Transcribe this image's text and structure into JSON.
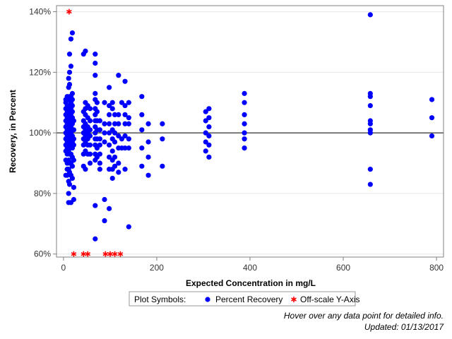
{
  "chart_data": {
    "type": "scatter",
    "xlabel": "Expected Concentration in mg/L",
    "ylabel": "Recovery, in Percent",
    "xlim": [
      -15,
      815
    ],
    "ylim": [
      59,
      142
    ],
    "x_ticks": [
      0,
      200,
      400,
      600,
      800
    ],
    "y_ticks": [
      60,
      80,
      100,
      120,
      140
    ],
    "y_tick_labels": [
      "60%",
      "80%",
      "100%",
      "120%",
      "140%"
    ],
    "reference_line_y": 100,
    "grid": "horizontal",
    "legend": {
      "title": "Plot Symbols:",
      "placement": "bottom-center",
      "items": [
        {
          "label": "Percent Recovery",
          "symbol": "filled-circle",
          "color": "#0000ff"
        },
        {
          "label": "Off-scale Y-Axis",
          "symbol": "asterisk",
          "color": "#ff0000"
        }
      ]
    },
    "series": [
      {
        "name": "Percent Recovery",
        "color": "#0000ff",
        "points": [
          [
            5,
            111
          ],
          [
            5,
            110
          ],
          [
            5,
            108
          ],
          [
            5,
            106
          ],
          [
            5,
            104
          ],
          [
            5,
            102
          ],
          [
            5,
            100
          ],
          [
            5,
            98
          ],
          [
            5,
            96
          ],
          [
            5,
            94
          ],
          [
            5,
            91
          ],
          [
            5,
            86
          ],
          [
            8,
            112
          ],
          [
            8,
            109
          ],
          [
            8,
            107
          ],
          [
            8,
            105
          ],
          [
            8,
            103
          ],
          [
            8,
            101
          ],
          [
            8,
            99
          ],
          [
            8,
            97
          ],
          [
            8,
            95
          ],
          [
            8,
            93
          ],
          [
            8,
            90
          ],
          [
            8,
            88
          ],
          [
            8,
            86
          ],
          [
            11,
            118
          ],
          [
            11,
            115
          ],
          [
            11,
            111
          ],
          [
            11,
            108
          ],
          [
            11,
            106
          ],
          [
            11,
            104
          ],
          [
            11,
            102
          ],
          [
            11,
            100
          ],
          [
            11,
            98
          ],
          [
            11,
            96
          ],
          [
            11,
            94
          ],
          [
            11,
            91
          ],
          [
            11,
            88
          ],
          [
            11,
            84
          ],
          [
            11,
            80
          ],
          [
            11,
            77
          ],
          [
            13,
            126
          ],
          [
            13,
            120
          ],
          [
            13,
            116
          ],
          [
            13,
            112
          ],
          [
            13,
            109
          ],
          [
            13,
            107
          ],
          [
            13,
            105
          ],
          [
            13,
            103
          ],
          [
            13,
            101
          ],
          [
            13,
            99
          ],
          [
            13,
            97
          ],
          [
            13,
            95
          ],
          [
            13,
            93
          ],
          [
            13,
            90
          ],
          [
            13,
            87
          ],
          [
            13,
            83
          ],
          [
            16,
            131
          ],
          [
            16,
            122
          ],
          [
            16,
            112
          ],
          [
            16,
            110
          ],
          [
            16,
            108
          ],
          [
            16,
            106
          ],
          [
            16,
            104
          ],
          [
            16,
            102
          ],
          [
            16,
            100
          ],
          [
            16,
            98
          ],
          [
            16,
            96
          ],
          [
            16,
            93
          ],
          [
            16,
            90
          ],
          [
            16,
            86
          ],
          [
            16,
            77
          ],
          [
            19,
            133
          ],
          [
            19,
            113
          ],
          [
            19,
            111
          ],
          [
            19,
            109
          ],
          [
            19,
            107
          ],
          [
            19,
            105
          ],
          [
            19,
            103
          ],
          [
            19,
            101
          ],
          [
            19,
            99
          ],
          [
            19,
            97
          ],
          [
            19,
            95
          ],
          [
            19,
            92
          ],
          [
            19,
            89
          ],
          [
            19,
            85
          ],
          [
            22,
            104
          ],
          [
            22,
            101
          ],
          [
            22,
            98
          ],
          [
            22,
            96
          ],
          [
            22,
            91
          ],
          [
            22,
            82
          ],
          [
            22,
            78
          ],
          [
            43,
            126
          ],
          [
            43,
            107
          ],
          [
            43,
            104
          ],
          [
            43,
            102
          ],
          [
            43,
            100
          ],
          [
            43,
            98
          ],
          [
            43,
            96
          ],
          [
            43,
            93
          ],
          [
            43,
            89
          ],
          [
            47,
            127
          ],
          [
            47,
            110
          ],
          [
            47,
            108
          ],
          [
            47,
            106
          ],
          [
            47,
            103
          ],
          [
            47,
            101
          ],
          [
            47,
            99
          ],
          [
            47,
            97
          ],
          [
            47,
            94
          ],
          [
            47,
            88
          ],
          [
            52,
            109
          ],
          [
            52,
            105
          ],
          [
            52,
            102
          ],
          [
            52,
            100
          ],
          [
            52,
            98
          ],
          [
            52,
            96
          ],
          [
            52,
            93
          ],
          [
            57,
            108
          ],
          [
            57,
            104
          ],
          [
            57,
            101
          ],
          [
            57,
            99
          ],
          [
            57,
            96
          ],
          [
            57,
            93
          ],
          [
            57,
            90
          ],
          [
            68,
            126
          ],
          [
            68,
            123
          ],
          [
            68,
            119
          ],
          [
            68,
            113
          ],
          [
            68,
            111
          ],
          [
            68,
            108
          ],
          [
            68,
            106
          ],
          [
            68,
            104
          ],
          [
            68,
            102
          ],
          [
            68,
            100
          ],
          [
            68,
            98
          ],
          [
            68,
            96
          ],
          [
            68,
            93
          ],
          [
            68,
            91
          ],
          [
            68,
            76
          ],
          [
            68,
            65
          ],
          [
            72,
            110
          ],
          [
            72,
            107
          ],
          [
            72,
            104
          ],
          [
            72,
            101
          ],
          [
            72,
            98
          ],
          [
            72,
            95
          ],
          [
            72,
            92
          ],
          [
            78,
            104
          ],
          [
            78,
            101
          ],
          [
            78,
            98
          ],
          [
            78,
            96
          ],
          [
            78,
            93
          ],
          [
            78,
            90
          ],
          [
            78,
            88
          ],
          [
            88,
            110
          ],
          [
            88,
            103
          ],
          [
            88,
            100
          ],
          [
            88,
            97
          ],
          [
            88,
            78
          ],
          [
            88,
            71
          ],
          [
            98,
            115
          ],
          [
            98,
            109
          ],
          [
            98,
            106
          ],
          [
            98,
            103
          ],
          [
            98,
            100
          ],
          [
            98,
            96
          ],
          [
            98,
            92
          ],
          [
            98,
            88
          ],
          [
            98,
            75
          ],
          [
            105,
            110
          ],
          [
            105,
            108
          ],
          [
            105,
            101
          ],
          [
            105,
            98
          ],
          [
            105,
            94
          ],
          [
            105,
            91
          ],
          [
            105,
            88
          ],
          [
            105,
            85
          ],
          [
            110,
            106
          ],
          [
            110,
            103
          ],
          [
            110,
            100
          ],
          [
            110,
            97
          ],
          [
            110,
            92
          ],
          [
            110,
            89
          ],
          [
            118,
            119
          ],
          [
            118,
            106
          ],
          [
            118,
            103
          ],
          [
            118,
            99
          ],
          [
            118,
            95
          ],
          [
            118,
            90
          ],
          [
            118,
            87
          ],
          [
            125,
            110
          ],
          [
            125,
            98
          ],
          [
            125,
            95
          ],
          [
            132,
            117
          ],
          [
            132,
            109
          ],
          [
            132,
            106
          ],
          [
            132,
            103
          ],
          [
            132,
            99
          ],
          [
            132,
            95
          ],
          [
            132,
            88
          ],
          [
            140,
            110
          ],
          [
            140,
            105
          ],
          [
            140,
            103
          ],
          [
            140,
            98
          ],
          [
            140,
            95
          ],
          [
            140,
            69
          ],
          [
            168,
            112
          ],
          [
            168,
            106
          ],
          [
            168,
            101
          ],
          [
            168,
            95
          ],
          [
            168,
            89
          ],
          [
            182,
            103
          ],
          [
            182,
            97
          ],
          [
            182,
            92
          ],
          [
            182,
            86
          ],
          [
            212,
            103
          ],
          [
            212,
            98
          ],
          [
            212,
            89
          ],
          [
            305,
            107
          ],
          [
            305,
            104
          ],
          [
            305,
            100
          ],
          [
            305,
            97
          ],
          [
            305,
            94
          ],
          [
            312,
            108
          ],
          [
            312,
            105
          ],
          [
            312,
            102
          ],
          [
            312,
            99
          ],
          [
            312,
            96
          ],
          [
            312,
            92
          ],
          [
            388,
            113
          ],
          [
            388,
            110
          ],
          [
            388,
            106
          ],
          [
            388,
            103
          ],
          [
            388,
            100
          ],
          [
            388,
            98
          ],
          [
            388,
            95
          ],
          [
            658,
            139
          ],
          [
            658,
            113
          ],
          [
            658,
            112
          ],
          [
            658,
            109
          ],
          [
            658,
            104
          ],
          [
            658,
            103
          ],
          [
            658,
            101
          ],
          [
            658,
            100
          ],
          [
            658,
            88
          ],
          [
            658,
            83
          ],
          [
            790,
            111
          ],
          [
            790,
            105
          ],
          [
            790,
            99
          ]
        ]
      },
      {
        "name": "Off-scale Y-Axis",
        "color": "#ff0000",
        "symbol": "asterisk",
        "points": [
          [
            12,
            140
          ],
          [
            22,
            60
          ],
          [
            43,
            60
          ],
          [
            52,
            60
          ],
          [
            90,
            60
          ],
          [
            100,
            60
          ],
          [
            110,
            60
          ],
          [
            122,
            60
          ]
        ]
      }
    ]
  },
  "footnotes": {
    "hover_hint": "Hover over any data point for detailed info.",
    "updated": "Updated: 01/13/2017"
  }
}
